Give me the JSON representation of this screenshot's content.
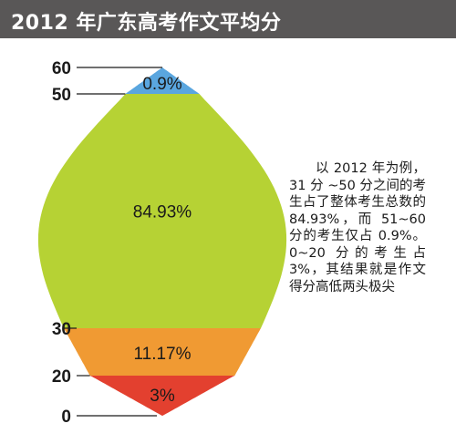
{
  "title": "2012 年广东高考作文平均分",
  "note": "以 2012 年为例，31 分 ~50 分之间的考生占了整体考生总数的 84.93%，而 51~60 分的考生仅占 0.9%。0~20 分的考生占 3%，其结果就是作文得分高低两头极尖",
  "colors": {
    "header_bg": "#595757",
    "band_60_50": "#5aa6df",
    "band_50_30": "#b6d234",
    "band_30_20": "#f09a33",
    "band_20_0": "#e3402f"
  },
  "chart_data": {
    "type": "area",
    "title": "2012 年广东高考作文平均分",
    "axis_ticks": [
      "60",
      "50",
      "30",
      "20",
      "0"
    ],
    "bands": [
      {
        "from": 50,
        "to": 60,
        "label": "0.9%",
        "value": 0.9,
        "color": "#5aa6df"
      },
      {
        "from": 30,
        "to": 50,
        "label": "84.93%",
        "value": 84.93,
        "color": "#b6d234"
      },
      {
        "from": 20,
        "to": 30,
        "label": "11.17%",
        "value": 11.17,
        "color": "#f09a33"
      },
      {
        "from": 0,
        "to": 20,
        "label": "3%",
        "value": 3,
        "color": "#e3402f"
      }
    ]
  }
}
